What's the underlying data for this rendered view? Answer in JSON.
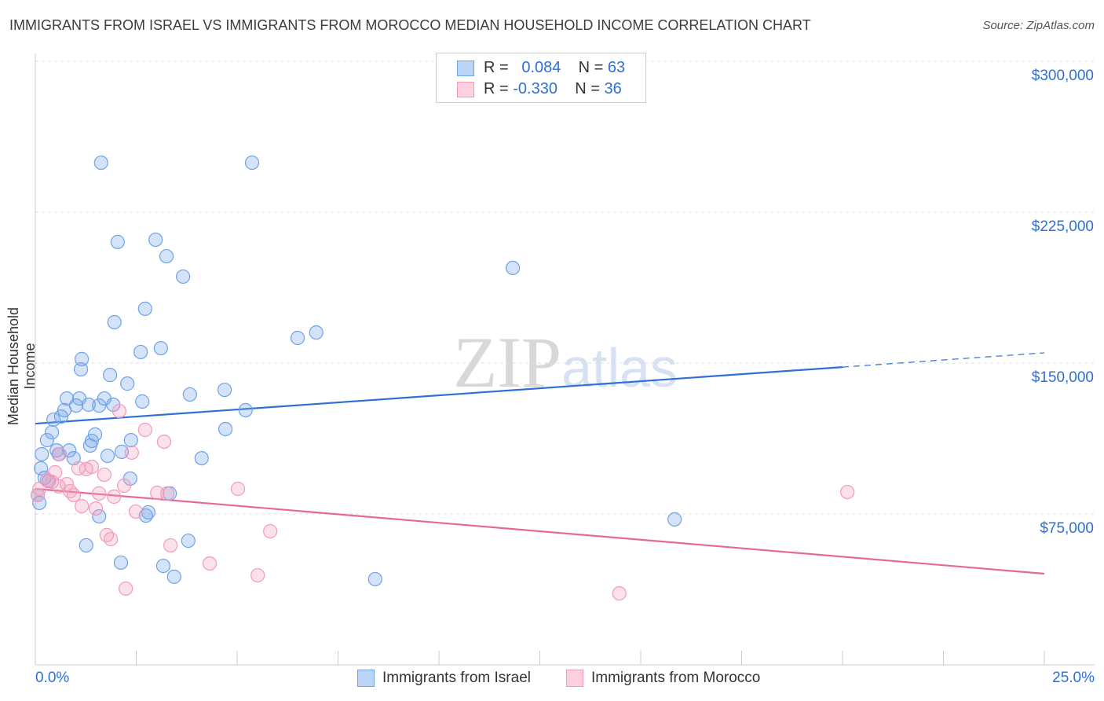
{
  "title": "IMMIGRANTS FROM ISRAEL VS IMMIGRANTS FROM MOROCCO MEDIAN HOUSEHOLD INCOME CORRELATION CHART",
  "source": "Source: ZipAtlas.com",
  "watermark": "ZIPatlas",
  "legend": {
    "r_label": "R =",
    "n_label": "N =",
    "israel": {
      "r": "0.084",
      "n": "63"
    },
    "morocco": {
      "r": "-0.330",
      "n": "36"
    }
  },
  "chart_data": {
    "type": "scatter",
    "title": "IMMIGRANTS FROM ISRAEL VS IMMIGRANTS FROM MOROCCO MEDIAN HOUSEHOLD INCOME CORRELATION CHART",
    "xlabel": "",
    "ylabel": "Median Household Income",
    "xlim": [
      0,
      25
    ],
    "ylim": [
      0,
      300000
    ],
    "x_tick_labels": [
      "0.0%",
      "25.0%"
    ],
    "y_ticks": [
      75000,
      150000,
      225000,
      300000
    ],
    "y_tick_labels": [
      "$75,000",
      "$150,000",
      "$225,000",
      "$300,000"
    ],
    "grid": true,
    "legend_placement": "top-center",
    "series": [
      {
        "name": "Immigrants from Israel",
        "color": "#6fa3e8",
        "trend_color": "#2f6fd6",
        "trend": {
          "x": [
            0,
            20,
            25
          ],
          "y": [
            119900,
            148000,
            155100
          ],
          "solid_until": 20
        },
        "points": [
          [
            1.63,
            249600
          ],
          [
            5.37,
            249600
          ],
          [
            2.04,
            210200
          ],
          [
            2.98,
            211300
          ],
          [
            3.25,
            203100
          ],
          [
            3.66,
            193000
          ],
          [
            11.83,
            197300
          ],
          [
            1.96,
            170300
          ],
          [
            2.72,
            177000
          ],
          [
            6.5,
            162500
          ],
          [
            6.96,
            165200
          ],
          [
            1.15,
            152000
          ],
          [
            1.13,
            146900
          ],
          [
            2.61,
            155500
          ],
          [
            3.11,
            157400
          ],
          [
            1.85,
            144100
          ],
          [
            2.28,
            139800
          ],
          [
            3.83,
            134400
          ],
          [
            4.69,
            136700
          ],
          [
            0.78,
            132400
          ],
          [
            1.09,
            132400
          ],
          [
            1.71,
            132400
          ],
          [
            0.72,
            126600
          ],
          [
            1.01,
            128900
          ],
          [
            1.32,
            129300
          ],
          [
            1.58,
            128900
          ],
          [
            1.93,
            129300
          ],
          [
            2.65,
            130900
          ],
          [
            5.21,
            126600
          ],
          [
            0.45,
            121900
          ],
          [
            0.64,
            123400
          ],
          [
            0.41,
            115600
          ],
          [
            1.48,
            114500
          ],
          [
            4.71,
            117200
          ],
          [
            0.29,
            111700
          ],
          [
            1.4,
            111300
          ],
          [
            1.36,
            109000
          ],
          [
            2.37,
            111700
          ],
          [
            0.16,
            104700
          ],
          [
            0.53,
            106600
          ],
          [
            0.84,
            106600
          ],
          [
            0.58,
            104700
          ],
          [
            0.95,
            102700
          ],
          [
            1.79,
            103900
          ],
          [
            2.14,
            105900
          ],
          [
            4.12,
            102700
          ],
          [
            0.14,
            97700
          ],
          [
            0.23,
            93000
          ],
          [
            0.33,
            91400
          ],
          [
            2.35,
            92600
          ],
          [
            3.33,
            85200
          ],
          [
            2.8,
            75800
          ],
          [
            2.74,
            74200
          ],
          [
            1.58,
            73800
          ],
          [
            1.26,
            59400
          ],
          [
            3.79,
            61700
          ],
          [
            15.84,
            72300
          ],
          [
            2.12,
            50800
          ],
          [
            3.17,
            49200
          ],
          [
            3.44,
            43800
          ],
          [
            8.42,
            42600
          ],
          [
            0.06,
            84400
          ],
          [
            0.1,
            80500
          ]
        ]
      },
      {
        "name": "Immigrants from Morocco",
        "color": "#f29bbb",
        "trend_color": "#e8679a",
        "trend": {
          "x": [
            0,
            25
          ],
          "y": [
            87500,
            45300
          ]
        },
        "points": [
          [
            2.08,
            126200
          ],
          [
            2.72,
            116800
          ],
          [
            3.19,
            110900
          ],
          [
            2.39,
            105500
          ],
          [
            0.6,
            104700
          ],
          [
            0.49,
            95700
          ],
          [
            1.07,
            97700
          ],
          [
            1.4,
            98400
          ],
          [
            1.26,
            97300
          ],
          [
            1.71,
            94500
          ],
          [
            0.29,
            91800
          ],
          [
            0.41,
            91000
          ],
          [
            0.78,
            89800
          ],
          [
            0.58,
            88700
          ],
          [
            2.2,
            89100
          ],
          [
            5.02,
            87500
          ],
          [
            0.86,
            86300
          ],
          [
            0.95,
            84400
          ],
          [
            1.58,
            85200
          ],
          [
            1.95,
            83600
          ],
          [
            3.02,
            85500
          ],
          [
            3.27,
            85200
          ],
          [
            20.12,
            85900
          ],
          [
            1.15,
            78900
          ],
          [
            1.5,
            77700
          ],
          [
            2.49,
            76200
          ],
          [
            1.77,
            64500
          ],
          [
            1.87,
            62500
          ],
          [
            3.35,
            59400
          ],
          [
            5.82,
            66400
          ],
          [
            4.32,
            50400
          ],
          [
            5.51,
            44500
          ],
          [
            2.24,
            37900
          ],
          [
            14.47,
            35500
          ],
          [
            0.06,
            84400
          ],
          [
            0.1,
            87500
          ]
        ]
      }
    ]
  }
}
